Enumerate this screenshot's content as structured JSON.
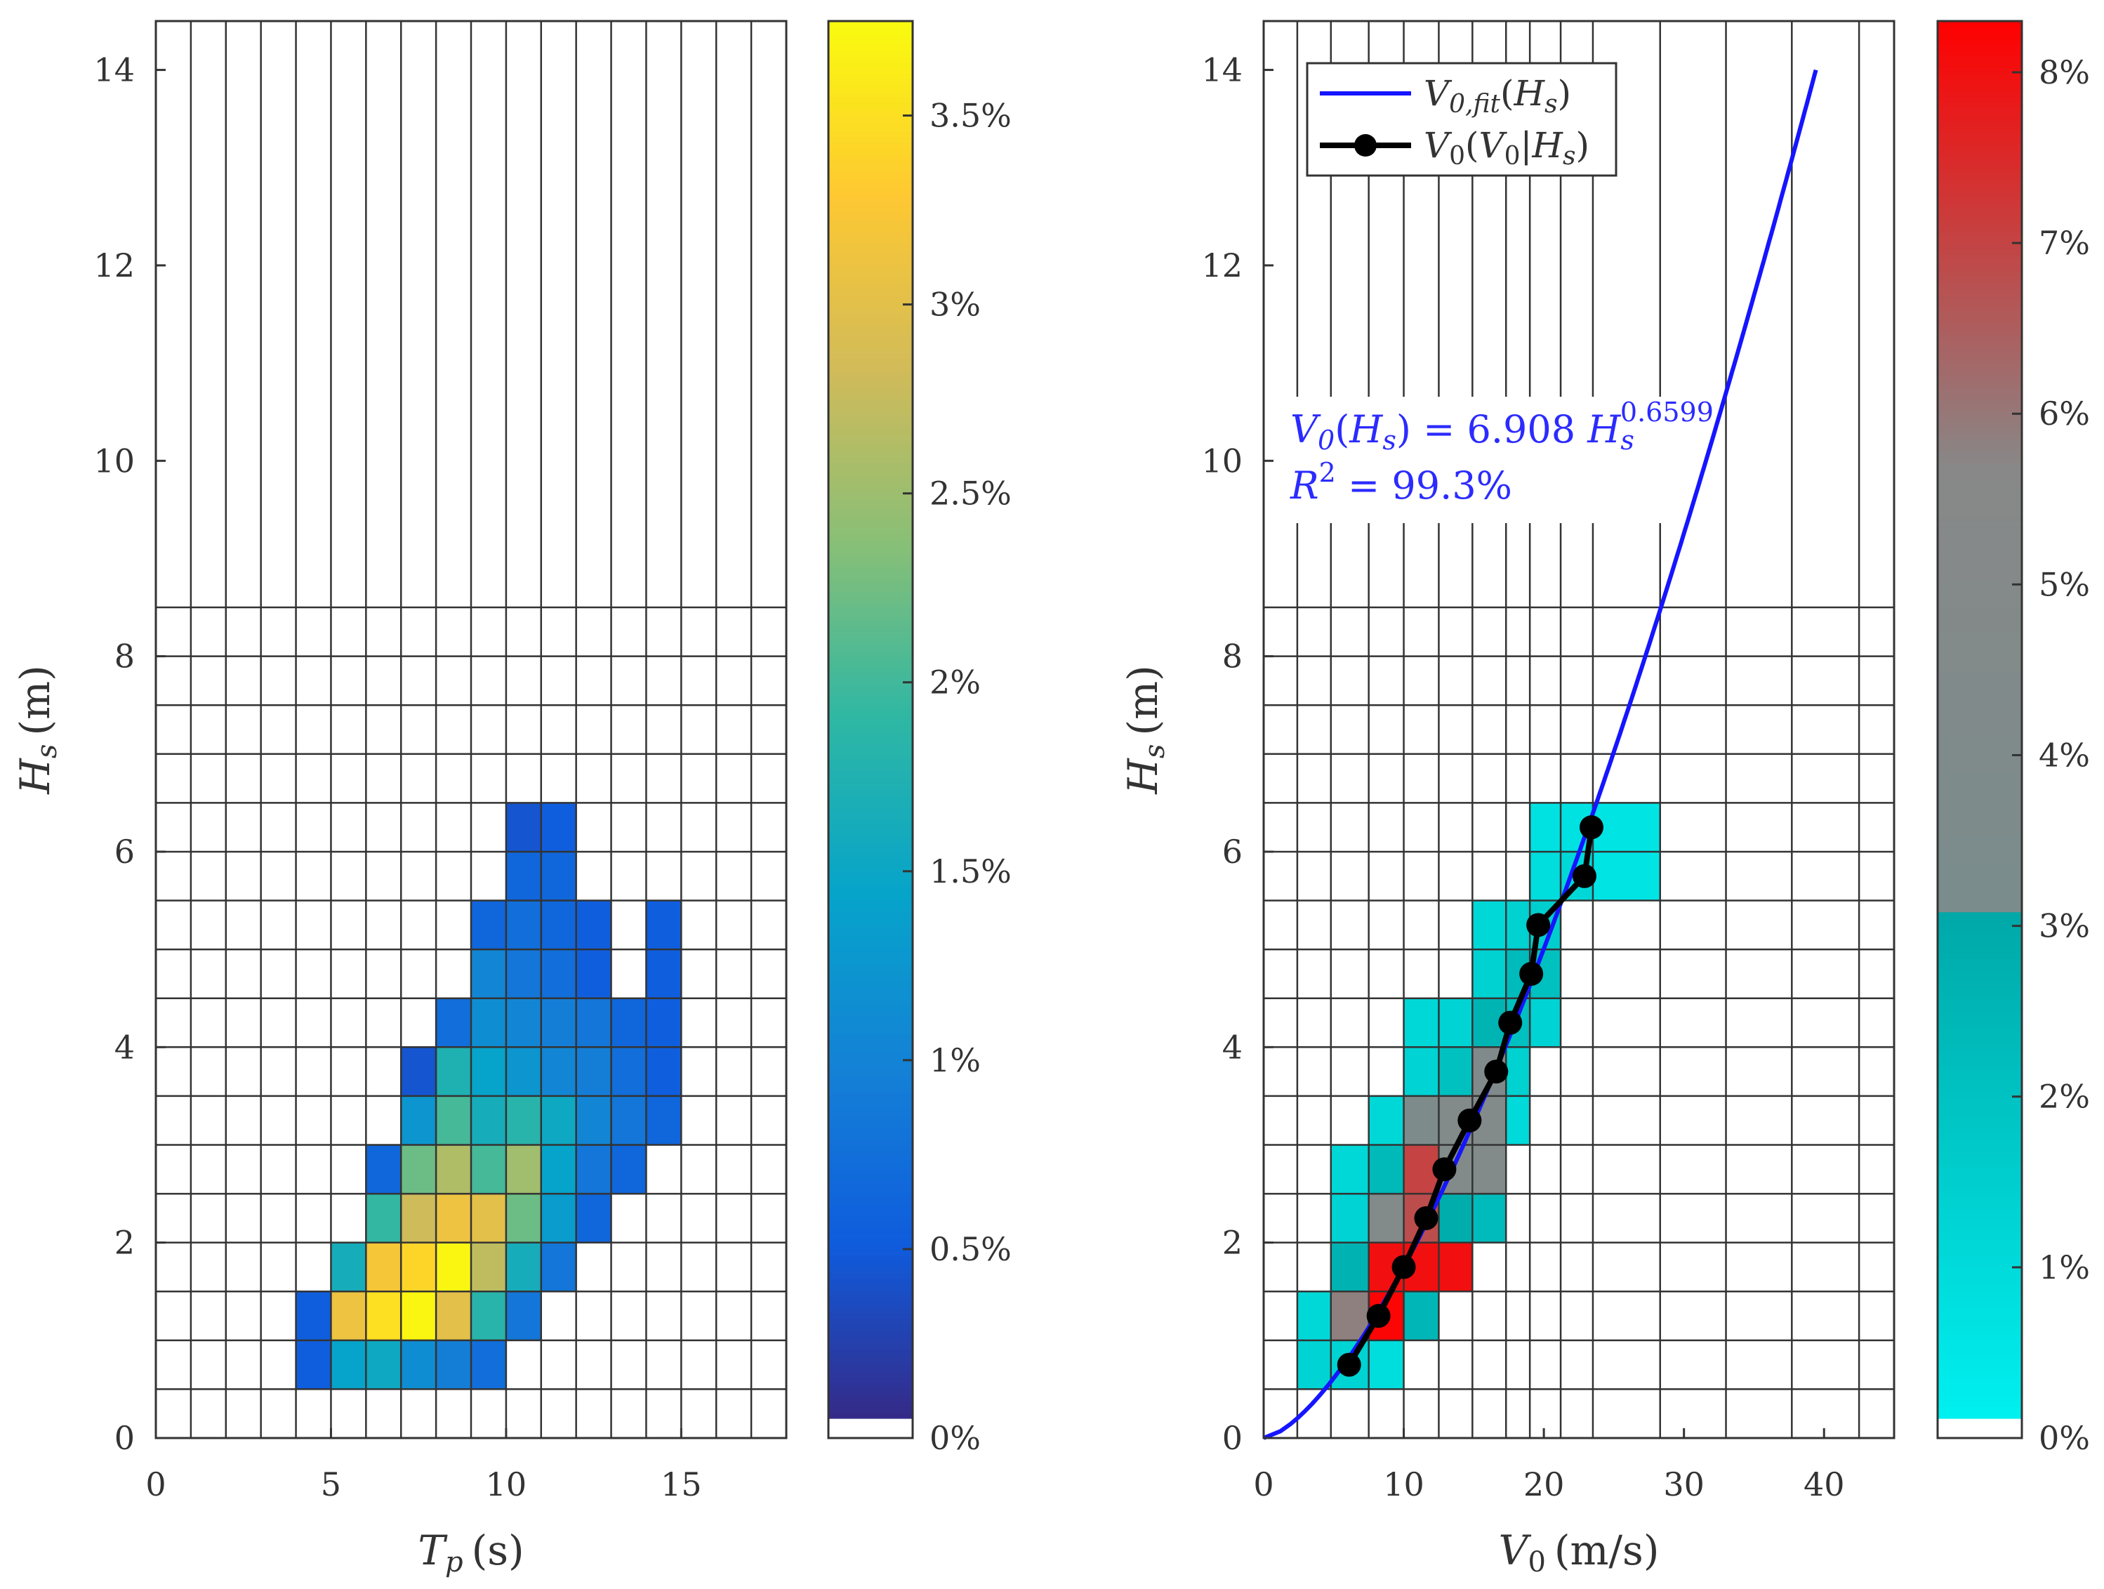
{
  "chart_data": [
    {
      "type": "heatmap",
      "xlabel": "T_p (s)",
      "xlabel_parts": {
        "var": "T",
        "sub": "p",
        "unit": "(s)"
      },
      "ylabel": "H_s (m)",
      "ylabel_parts": {
        "var": "H",
        "sub": "s",
        "unit": "(m)"
      },
      "xlim": [
        0,
        18
      ],
      "ylim": [
        0,
        14.5
      ],
      "xticks": [
        0,
        5,
        10,
        15
      ],
      "yticks": [
        0,
        2,
        4,
        6,
        8,
        10,
        12,
        14
      ],
      "x_bin_width": 1,
      "y_bin_width_lower": 0.5,
      "y_grid_split": 8.5,
      "colorbar": {
        "min": 0,
        "max": 3.75,
        "ticks": [
          0,
          0.5,
          1,
          1.5,
          2,
          2.5,
          3,
          3.5
        ],
        "tick_labels": [
          "0%",
          "0.5%",
          "1%",
          "1.5%",
          "2%",
          "2.5%",
          "3%",
          "3.5%"
        ],
        "colormap": "parula",
        "colors": [
          "#352a87",
          "#0f5cdd",
          "#1481d6",
          "#06a4ca",
          "#2eb7a4",
          "#87bf77",
          "#d1bb59",
          "#fec832",
          "#f9fb0e"
        ]
      },
      "cells": [
        {
          "x0": 4,
          "y0": 0.5,
          "v": 0.5
        },
        {
          "x0": 5,
          "y0": 0.5,
          "v": 1.4
        },
        {
          "x0": 6,
          "y0": 0.5,
          "v": 1.5
        },
        {
          "x0": 7,
          "y0": 0.5,
          "v": 1.1
        },
        {
          "x0": 8,
          "y0": 0.5,
          "v": 0.9
        },
        {
          "x0": 9,
          "y0": 0.5,
          "v": 0.7
        },
        {
          "x0": 4,
          "y0": 1.0,
          "v": 0.5
        },
        {
          "x0": 5,
          "y0": 1.0,
          "v": 3.1
        },
        {
          "x0": 6,
          "y0": 1.0,
          "v": 3.5
        },
        {
          "x0": 7,
          "y0": 1.0,
          "v": 3.7
        },
        {
          "x0": 8,
          "y0": 1.0,
          "v": 3.0
        },
        {
          "x0": 9,
          "y0": 1.0,
          "v": 1.8
        },
        {
          "x0": 10,
          "y0": 1.0,
          "v": 0.8
        },
        {
          "x0": 5,
          "y0": 1.5,
          "v": 1.6
        },
        {
          "x0": 6,
          "y0": 1.5,
          "v": 3.2
        },
        {
          "x0": 7,
          "y0": 1.5,
          "v": 3.4
        },
        {
          "x0": 8,
          "y0": 1.5,
          "v": 3.7
        },
        {
          "x0": 9,
          "y0": 1.5,
          "v": 2.7
        },
        {
          "x0": 10,
          "y0": 1.5,
          "v": 1.6
        },
        {
          "x0": 11,
          "y0": 1.5,
          "v": 0.8
        },
        {
          "x0": 6,
          "y0": 2.0,
          "v": 1.9
        },
        {
          "x0": 7,
          "y0": 2.0,
          "v": 2.8
        },
        {
          "x0": 8,
          "y0": 2.0,
          "v": 3.1
        },
        {
          "x0": 9,
          "y0": 2.0,
          "v": 3.0
        },
        {
          "x0": 10,
          "y0": 2.0,
          "v": 2.2
        },
        {
          "x0": 11,
          "y0": 2.0,
          "v": 1.3
        },
        {
          "x0": 12,
          "y0": 2.0,
          "v": 0.6
        },
        {
          "x0": 6,
          "y0": 2.5,
          "v": 0.6
        },
        {
          "x0": 7,
          "y0": 2.5,
          "v": 2.2
        },
        {
          "x0": 8,
          "y0": 2.5,
          "v": 2.6
        },
        {
          "x0": 9,
          "y0": 2.5,
          "v": 2.0
        },
        {
          "x0": 10,
          "y0": 2.5,
          "v": 2.5
        },
        {
          "x0": 11,
          "y0": 2.5,
          "v": 1.4
        },
        {
          "x0": 12,
          "y0": 2.5,
          "v": 0.8
        },
        {
          "x0": 13,
          "y0": 2.5,
          "v": 0.6
        },
        {
          "x0": 7,
          "y0": 3.0,
          "v": 1.2
        },
        {
          "x0": 8,
          "y0": 3.0,
          "v": 2.0
        },
        {
          "x0": 9,
          "y0": 3.0,
          "v": 1.6
        },
        {
          "x0": 10,
          "y0": 3.0,
          "v": 1.8
        },
        {
          "x0": 11,
          "y0": 3.0,
          "v": 1.5
        },
        {
          "x0": 12,
          "y0": 3.0,
          "v": 1.0
        },
        {
          "x0": 13,
          "y0": 3.0,
          "v": 0.8
        },
        {
          "x0": 14,
          "y0": 3.0,
          "v": 0.6
        },
        {
          "x0": 7,
          "y0": 3.5,
          "v": 0.4
        },
        {
          "x0": 8,
          "y0": 3.5,
          "v": 1.7
        },
        {
          "x0": 9,
          "y0": 3.5,
          "v": 1.4
        },
        {
          "x0": 10,
          "y0": 3.5,
          "v": 1.2
        },
        {
          "x0": 11,
          "y0": 3.5,
          "v": 1.0
        },
        {
          "x0": 12,
          "y0": 3.5,
          "v": 0.9
        },
        {
          "x0": 13,
          "y0": 3.5,
          "v": 0.7
        },
        {
          "x0": 14,
          "y0": 3.5,
          "v": 0.5
        },
        {
          "x0": 8,
          "y0": 4.0,
          "v": 0.7
        },
        {
          "x0": 9,
          "y0": 4.0,
          "v": 1.1
        },
        {
          "x0": 10,
          "y0": 4.0,
          "v": 1.0
        },
        {
          "x0": 11,
          "y0": 4.0,
          "v": 0.9
        },
        {
          "x0": 12,
          "y0": 4.0,
          "v": 0.8
        },
        {
          "x0": 13,
          "y0": 4.0,
          "v": 0.6
        },
        {
          "x0": 14,
          "y0": 4.0,
          "v": 0.5
        },
        {
          "x0": 9,
          "y0": 4.5,
          "v": 1.0
        },
        {
          "x0": 10,
          "y0": 4.5,
          "v": 0.8
        },
        {
          "x0": 11,
          "y0": 4.5,
          "v": 0.7
        },
        {
          "x0": 12,
          "y0": 4.5,
          "v": 0.5
        },
        {
          "x0": 14,
          "y0": 4.5,
          "v": 0.5
        },
        {
          "x0": 9,
          "y0": 5.0,
          "v": 0.6
        },
        {
          "x0": 10,
          "y0": 5.0,
          "v": 0.7
        },
        {
          "x0": 11,
          "y0": 5.0,
          "v": 0.6
        },
        {
          "x0": 12,
          "y0": 5.0,
          "v": 0.5
        },
        {
          "x0": 14,
          "y0": 5.0,
          "v": 0.5
        },
        {
          "x0": 10,
          "y0": 5.5,
          "v": 0.6
        },
        {
          "x0": 11,
          "y0": 5.5,
          "v": 0.6
        },
        {
          "x0": 10,
          "y0": 6.0,
          "v": 0.4
        },
        {
          "x0": 11,
          "y0": 6.0,
          "v": 0.5
        }
      ]
    },
    {
      "type": "heatmap",
      "xlabel": "V_0 (m/s)",
      "xlabel_parts": {
        "var": "V",
        "sub": "0",
        "unit": "(m/s)"
      },
      "ylabel": "H_s (m)",
      "ylabel_parts": {
        "var": "H",
        "sub": "s",
        "unit": "(m)"
      },
      "xlim": [
        0,
        45
      ],
      "ylim": [
        0,
        14.5
      ],
      "xticks": [
        0,
        10,
        20,
        30,
        40
      ],
      "yticks": [
        0,
        2,
        4,
        6,
        8,
        10,
        12,
        14
      ],
      "x_bin_edges": [
        0,
        2.4,
        4.8,
        7.5,
        10,
        12.5,
        14.9,
        17.3,
        19,
        21.2,
        23.5,
        28.3,
        33,
        37.7,
        42.5,
        45
      ],
      "y_bin_width_lower": 0.5,
      "y_grid_split": 8.5,
      "colorbar": {
        "min": 0,
        "max": 8.3,
        "ticks": [
          0,
          1,
          2,
          3,
          4,
          5,
          6,
          7,
          8
        ],
        "tick_labels": [
          "0%",
          "1%",
          "2%",
          "3%",
          "4%",
          "5%",
          "6%",
          "7%",
          "8%"
        ],
        "colormap": "cyan-teal-gray-red",
        "colors": [
          "#00f0f0",
          "#00a8a8",
          "#888888",
          "#ff0000"
        ]
      },
      "cells": [
        {
          "x0": 2.4,
          "x1": 4.8,
          "y0": 0.5,
          "v": 1.2
        },
        {
          "x0": 4.8,
          "x1": 7.5,
          "y0": 0.5,
          "v": 1.2
        },
        {
          "x0": 7.5,
          "x1": 10,
          "y0": 0.5,
          "v": 0.8
        },
        {
          "x0": 2.4,
          "x1": 4.8,
          "y0": 1.0,
          "v": 1.0
        },
        {
          "x0": 4.8,
          "x1": 7.5,
          "y0": 1.0,
          "v": 5.8
        },
        {
          "x0": 7.5,
          "x1": 10,
          "y0": 1.0,
          "v": 8.2
        },
        {
          "x0": 10,
          "x1": 12.5,
          "y0": 1.0,
          "v": 2.4
        },
        {
          "x0": 4.8,
          "x1": 7.5,
          "y0": 1.5,
          "v": 2.6
        },
        {
          "x0": 7.5,
          "x1": 10,
          "y0": 1.5,
          "v": 8.0
        },
        {
          "x0": 10,
          "x1": 12.5,
          "y0": 1.5,
          "v": 8.0
        },
        {
          "x0": 12.5,
          "x1": 14.9,
          "y0": 1.5,
          "v": 8.0
        },
        {
          "x0": 4.8,
          "x1": 7.5,
          "y0": 2.0,
          "v": 1.2
        },
        {
          "x0": 7.5,
          "x1": 10,
          "y0": 2.0,
          "v": 4.6
        },
        {
          "x0": 10,
          "x1": 12.5,
          "y0": 2.0,
          "v": 6.8
        },
        {
          "x0": 12.5,
          "x1": 14.9,
          "y0": 2.0,
          "v": 2.8
        },
        {
          "x0": 14.9,
          "x1": 17.3,
          "y0": 2.0,
          "v": 2.2
        },
        {
          "x0": 4.8,
          "x1": 7.5,
          "y0": 2.5,
          "v": 1.0
        },
        {
          "x0": 7.5,
          "x1": 10,
          "y0": 2.5,
          "v": 2.3
        },
        {
          "x0": 10,
          "x1": 12.5,
          "y0": 2.5,
          "v": 7.0
        },
        {
          "x0": 12.5,
          "x1": 14.9,
          "y0": 2.5,
          "v": 4.6
        },
        {
          "x0": 14.9,
          "x1": 17.3,
          "y0": 2.5,
          "v": 4.6
        },
        {
          "x0": 7.5,
          "x1": 10,
          "y0": 3.0,
          "v": 1.0
        },
        {
          "x0": 10,
          "x1": 12.5,
          "y0": 3.0,
          "v": 3.6
        },
        {
          "x0": 12.5,
          "x1": 14.9,
          "y0": 3.0,
          "v": 4.6
        },
        {
          "x0": 14.9,
          "x1": 17.3,
          "y0": 3.0,
          "v": 4.6
        },
        {
          "x0": 17.3,
          "x1": 19,
          "y0": 3.0,
          "v": 0.9
        },
        {
          "x0": 10,
          "x1": 12.5,
          "y0": 3.5,
          "v": 1.2
        },
        {
          "x0": 12.5,
          "x1": 14.9,
          "y0": 3.5,
          "v": 2.0
        },
        {
          "x0": 14.9,
          "x1": 17.3,
          "y0": 3.5,
          "v": 4.4
        },
        {
          "x0": 17.3,
          "x1": 19,
          "y0": 3.5,
          "v": 1.3
        },
        {
          "x0": 10,
          "x1": 12.5,
          "y0": 4.0,
          "v": 1.0
        },
        {
          "x0": 12.5,
          "x1": 14.9,
          "y0": 4.0,
          "v": 1.2
        },
        {
          "x0": 14.9,
          "x1": 17.3,
          "y0": 4.0,
          "v": 2.5
        },
        {
          "x0": 17.3,
          "x1": 19,
          "y0": 4.0,
          "v": 2.0
        },
        {
          "x0": 19,
          "x1": 21.2,
          "y0": 4.0,
          "v": 1.2
        },
        {
          "x0": 14.9,
          "x1": 17.3,
          "y0": 4.5,
          "v": 1.3
        },
        {
          "x0": 17.3,
          "x1": 19,
          "y0": 4.5,
          "v": 2.2
        },
        {
          "x0": 19,
          "x1": 21.2,
          "y0": 4.5,
          "v": 2.0
        },
        {
          "x0": 14.9,
          "x1": 17.3,
          "y0": 5.0,
          "v": 1.0
        },
        {
          "x0": 17.3,
          "x1": 19,
          "y0": 5.0,
          "v": 1.3
        },
        {
          "x0": 19,
          "x1": 21.2,
          "y0": 5.0,
          "v": 1.4
        },
        {
          "x0": 19,
          "x1": 21.2,
          "y0": 5.5,
          "v": 0.8
        },
        {
          "x0": 21.2,
          "x1": 23.5,
          "y0": 5.5,
          "v": 1.0
        },
        {
          "x0": 23.5,
          "x1": 28.3,
          "y0": 5.5,
          "v": 0.5
        },
        {
          "x0": 19,
          "x1": 21.2,
          "y0": 6.0,
          "v": 0.6
        },
        {
          "x0": 21.2,
          "x1": 23.5,
          "y0": 6.0,
          "v": 0.6
        },
        {
          "x0": 23.5,
          "x1": 28.3,
          "y0": 6.0,
          "v": 0.5
        }
      ],
      "series": [
        {
          "name": "V_{0,fit}(H_s)",
          "type": "line",
          "color": "#1515ff",
          "formula": "V0 = 6.908 * Hs^0.6599",
          "hs_range": [
            0,
            14
          ]
        },
        {
          "name": "V_0(V_0|H_s)",
          "type": "line-markers",
          "color": "#000000",
          "points": [
            [
              6.1,
              0.75
            ],
            [
              8.2,
              1.25
            ],
            [
              10.0,
              1.75
            ],
            [
              11.6,
              2.25
            ],
            [
              12.9,
              2.75
            ],
            [
              14.7,
              3.25
            ],
            [
              16.6,
              3.75
            ],
            [
              17.6,
              4.25
            ],
            [
              19.1,
              4.75
            ],
            [
              19.6,
              5.25
            ],
            [
              22.9,
              5.75
            ],
            [
              23.4,
              6.25
            ]
          ]
        }
      ],
      "legend": {
        "position": "top-left",
        "entries": [
          "V_{0,fit}(H_s)",
          "V_0(V_0|H_s)"
        ]
      },
      "annotations": [
        "V_0(H_s) = 6.908 H_s^{0.6599}",
        "R^2 = 99.3%"
      ],
      "annotation_parts": {
        "eq_lhs": "V",
        "eq_lhs_sub": "0",
        "eq_arg_var": "H",
        "eq_arg_sub": "s",
        "eq_mid": " = 6.908 ",
        "eq_base": "H",
        "eq_base_sub": "s",
        "eq_exp": "0.6599",
        "r2_var": "R",
        "r2_exp": "2",
        "r2_val": " = 99.3%"
      },
      "legend_parts": {
        "fit_var": "V",
        "fit_sub": "0,fit",
        "fit_arg_var": "H",
        "fit_arg_sub": "s",
        "cond_var": "V",
        "cond_sub": "0",
        "cond_inner_var": "V",
        "cond_inner_sub": "0",
        "cond_given_var": "H",
        "cond_given_sub": "s"
      }
    }
  ]
}
